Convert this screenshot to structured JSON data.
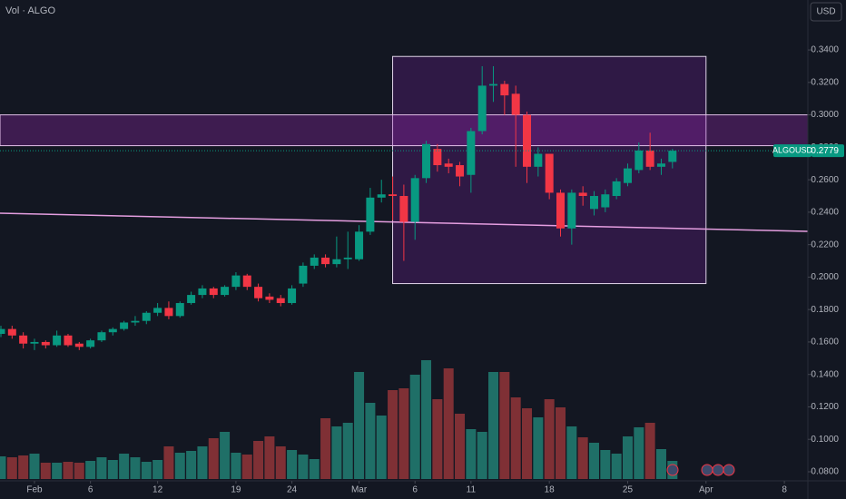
{
  "chart_data": {
    "type": "candlestick",
    "indicator": "Vol · ALGO",
    "currency": "USD",
    "symbol": "ALGOUSD",
    "last_price": 0.2779,
    "up_color": "#089981",
    "down_color": "#f23645",
    "volume_up_color": "#1f6f67",
    "volume_down_color": "#7f3035",
    "xlim": [
      -3.08,
      69.1
    ],
    "xticks": [
      {
        "value": 0,
        "label": "Feb"
      },
      {
        "value": 5,
        "label": "6"
      },
      {
        "value": 11,
        "label": "12"
      },
      {
        "value": 18,
        "label": "19"
      },
      {
        "value": 23,
        "label": "24"
      },
      {
        "value": 29,
        "label": "Mar"
      },
      {
        "value": 34,
        "label": "6"
      },
      {
        "value": 39,
        "label": "11"
      },
      {
        "value": 46,
        "label": "18"
      },
      {
        "value": 53,
        "label": "25"
      },
      {
        "value": 60,
        "label": "Apr"
      },
      {
        "value": 67,
        "label": "8"
      }
    ],
    "ylim": [
      0.0744,
      0.3708
    ],
    "yticks": [
      {
        "value": 0.08,
        "label": "0.0800"
      },
      {
        "value": 0.1,
        "label": "0.1000"
      },
      {
        "value": 0.12,
        "label": "0.1200"
      },
      {
        "value": 0.14,
        "label": "0.1400"
      },
      {
        "value": 0.16,
        "label": "0.1600"
      },
      {
        "value": 0.18,
        "label": "0.1800"
      },
      {
        "value": 0.2,
        "label": "0.2000"
      },
      {
        "value": 0.22,
        "label": "0.2200"
      },
      {
        "value": 0.24,
        "label": "0.2400"
      },
      {
        "value": 0.26,
        "label": "0.2600"
      },
      {
        "value": 0.28,
        "label": "0.2800"
      },
      {
        "value": 0.3,
        "label": "0.3000"
      },
      {
        "value": 0.32,
        "label": "0.3200"
      },
      {
        "value": 0.34,
        "label": "0.3400"
      }
    ],
    "grid": false,
    "volume_ylim": [
      0,
      400
    ],
    "x": [
      -3,
      -2,
      -1,
      0,
      1,
      2,
      3,
      4,
      5,
      6,
      7,
      8,
      9,
      10,
      11,
      12,
      13,
      14,
      15,
      16,
      17,
      18,
      19,
      20,
      21,
      22,
      23,
      24,
      25,
      26,
      27,
      28,
      29,
      30,
      31,
      32,
      33,
      34,
      35,
      36,
      37,
      38,
      39,
      40,
      41,
      42,
      43,
      44,
      45,
      46,
      47,
      48,
      49,
      50,
      51,
      52,
      53,
      54,
      55,
      56,
      57
    ],
    "open": [
      0.165,
      0.168,
      0.164,
      0.159,
      0.16,
      0.158,
      0.164,
      0.159,
      0.157,
      0.161,
      0.166,
      0.168,
      0.172,
      0.173,
      0.178,
      0.181,
      0.176,
      0.184,
      0.189,
      0.193,
      0.189,
      0.194,
      0.201,
      0.194,
      0.188,
      0.187,
      0.184,
      0.196,
      0.207,
      0.212,
      0.208,
      0.211,
      0.211,
      0.228,
      0.249,
      0.251,
      0.25,
      0.234,
      0.261,
      0.279,
      0.27,
      0.269,
      0.263,
      0.29,
      0.318,
      0.319,
      0.313,
      0.3,
      0.268,
      0.276,
      0.252,
      0.23,
      0.252,
      0.242,
      0.243,
      0.25,
      0.258,
      0.266,
      0.278,
      0.268,
      0.271
    ],
    "high": [
      0.17,
      0.17,
      0.166,
      0.162,
      0.161,
      0.167,
      0.165,
      0.16,
      0.162,
      0.167,
      0.169,
      0.173,
      0.176,
      0.179,
      0.184,
      0.185,
      0.185,
      0.191,
      0.195,
      0.194,
      0.195,
      0.203,
      0.202,
      0.196,
      0.19,
      0.189,
      0.195,
      0.209,
      0.214,
      0.214,
      0.225,
      0.228,
      0.232,
      0.255,
      0.26,
      0.262,
      0.257,
      0.263,
      0.284,
      0.282,
      0.273,
      0.271,
      0.292,
      0.33,
      0.33,
      0.321,
      0.318,
      0.302,
      0.28,
      0.276,
      0.254,
      0.254,
      0.256,
      0.253,
      0.254,
      0.261,
      0.27,
      0.283,
      0.289,
      0.273,
      0.279
    ],
    "low": [
      0.163,
      0.162,
      0.156,
      0.155,
      0.156,
      0.157,
      0.157,
      0.155,
      0.156,
      0.16,
      0.164,
      0.167,
      0.17,
      0.171,
      0.176,
      0.174,
      0.175,
      0.183,
      0.187,
      0.187,
      0.188,
      0.192,
      0.192,
      0.185,
      0.184,
      0.182,
      0.183,
      0.194,
      0.205,
      0.206,
      0.206,
      0.205,
      0.21,
      0.226,
      0.246,
      0.235,
      0.21,
      0.223,
      0.258,
      0.265,
      0.264,
      0.256,
      0.252,
      0.288,
      0.308,
      0.3,
      0.268,
      0.258,
      0.262,
      0.248,
      0.225,
      0.22,
      0.244,
      0.238,
      0.24,
      0.248,
      0.256,
      0.264,
      0.266,
      0.263,
      0.267
    ],
    "close": [
      0.168,
      0.164,
      0.159,
      0.16,
      0.158,
      0.164,
      0.158,
      0.157,
      0.161,
      0.166,
      0.168,
      0.172,
      0.173,
      0.178,
      0.181,
      0.176,
      0.184,
      0.189,
      0.193,
      0.189,
      0.194,
      0.201,
      0.194,
      0.187,
      0.186,
      0.184,
      0.193,
      0.207,
      0.212,
      0.208,
      0.211,
      0.212,
      0.228,
      0.249,
      0.251,
      0.25,
      0.234,
      0.261,
      0.282,
      0.269,
      0.268,
      0.262,
      0.29,
      0.318,
      0.319,
      0.312,
      0.3,
      0.268,
      0.276,
      0.252,
      0.23,
      0.252,
      0.25,
      0.25,
      0.251,
      0.259,
      0.267,
      0.278,
      0.268,
      0.27,
      0.2779
    ],
    "volume": [
      25,
      24,
      26,
      28,
      18,
      18,
      19,
      18,
      20,
      24,
      21,
      28,
      24,
      19,
      21,
      36,
      29,
      31,
      36,
      45,
      52,
      29,
      27,
      42,
      47,
      36,
      32,
      27,
      22,
      67,
      58,
      62,
      118,
      84,
      70,
      98,
      100,
      115,
      131,
      88,
      122,
      72,
      55,
      52,
      118,
      118,
      90,
      78,
      68,
      88,
      79,
      58,
      46,
      40,
      32,
      28,
      47,
      57,
      62,
      33,
      20
    ],
    "zone_box": {
      "x": [
        32,
        60
      ],
      "y": [
        0.196,
        0.336
      ]
    },
    "price_band": {
      "y": [
        0.281,
        0.3
      ]
    },
    "trend_line": {
      "x": [
        -3.08,
        69.1
      ],
      "y": [
        0.2394,
        0.2282
      ]
    }
  }
}
